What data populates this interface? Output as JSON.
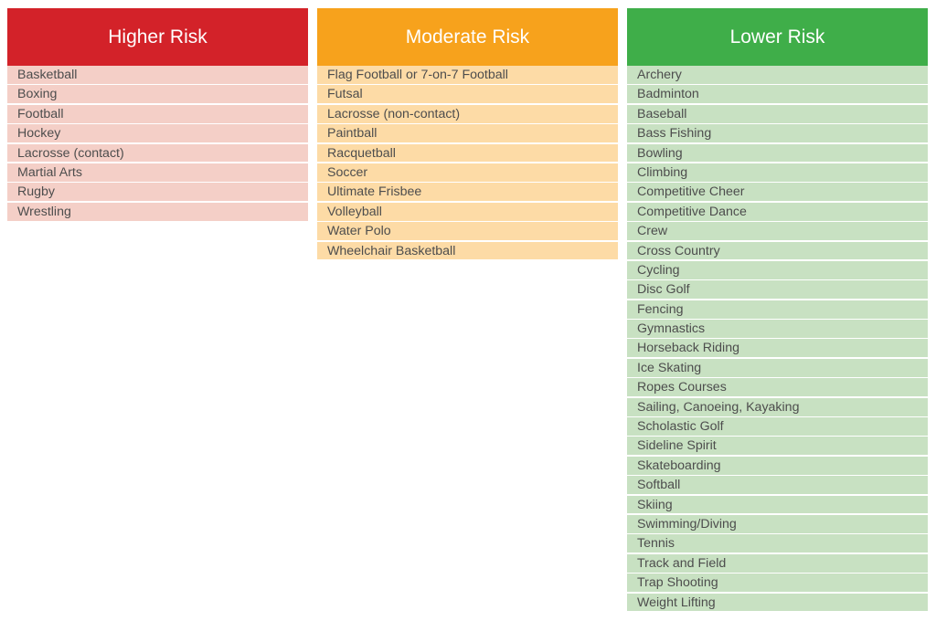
{
  "columns": [
    {
      "title": "Higher Risk",
      "header_color": "#d32229",
      "row_color": "#f4cfc7",
      "items": [
        "Basketball",
        "Boxing",
        "Football",
        "Hockey",
        "Lacrosse (contact)",
        "Martial Arts",
        "Rugby",
        "Wrestling"
      ]
    },
    {
      "title": "Moderate Risk",
      "header_color": "#f7a21c",
      "row_color": "#fddba6",
      "items": [
        "Flag Football or 7-on-7 Football",
        "Futsal",
        "Lacrosse (non-contact)",
        "Paintball",
        "Racquetball",
        "Soccer",
        "Ultimate Frisbee",
        "Volleyball",
        "Water Polo",
        "Wheelchair Basketball"
      ]
    },
    {
      "title": "Lower Risk",
      "header_color": "#3fae49",
      "row_color": "#c8e1c2",
      "items": [
        "Archery",
        "Badminton",
        "Baseball",
        "Bass Fishing",
        "Bowling",
        "Climbing",
        "Competitive Cheer",
        "Competitive Dance",
        "Crew",
        "Cross Country",
        "Cycling",
        "Disc Golf",
        "Fencing",
        "Gymnastics",
        "Horseback Riding",
        "Ice Skating",
        "Ropes Courses",
        "Sailing, Canoeing, Kayaking",
        "Scholastic Golf",
        "Sideline Spirit",
        "Skateboarding",
        "Softball",
        "Skiing",
        "Swimming/Diving",
        "Tennis",
        "Track and Field",
        "Trap Shooting",
        "Weight Lifting"
      ]
    }
  ]
}
